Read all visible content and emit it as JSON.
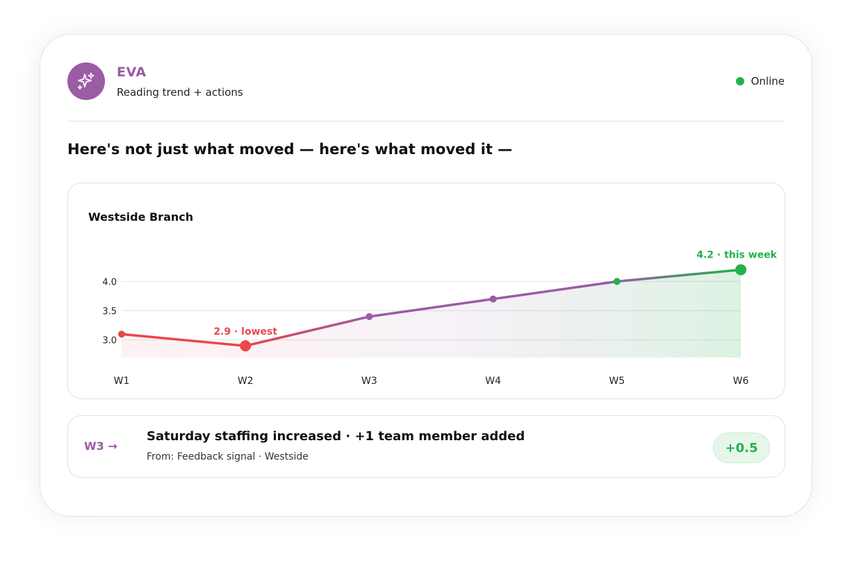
{
  "header": {
    "agent_name": "EVA",
    "agent_subtitle": "Reading trend + actions",
    "status_label": "Online",
    "avatar_icon": "sparkles-icon"
  },
  "headline": "Here's not just what moved — here's what moved it —",
  "colors": {
    "brand": "#9b5ba5",
    "low": "#e8474c",
    "high": "#22b14c"
  },
  "chart_data": {
    "type": "line",
    "title": "Westside Branch",
    "categories": [
      "W1",
      "W2",
      "W3",
      "W4",
      "W5",
      "W6"
    ],
    "series": [
      {
        "values": [
          3.1,
          2.9,
          3.4,
          3.7,
          4.0,
          4.2
        ]
      }
    ],
    "yticks": [
      3.0,
      3.5,
      4.0
    ],
    "ytick_labels": [
      "3.0",
      "3.5",
      "4.0"
    ],
    "ylim": [
      2.7,
      4.2
    ],
    "grid": true,
    "annotations": [
      {
        "x": "W2",
        "value": 2.9,
        "text": "2.9 · lowest"
      },
      {
        "x": "W6",
        "value": 4.2,
        "text": "4.2 · this week"
      }
    ]
  },
  "action": {
    "week_label": "W3 →",
    "title": "Saturday staffing increased · +1 team member added",
    "source": "From: Feedback signal · Westside",
    "delta": "+0.5"
  }
}
